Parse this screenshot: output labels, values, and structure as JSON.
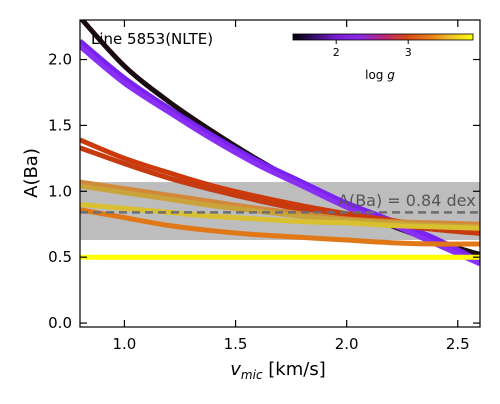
{
  "chart_data": {
    "type": "line",
    "title": "Line 5853(NLTE)",
    "xlabel_main": "v",
    "xlabel_sub": "mic",
    "xlabel_unit": " [km/s]",
    "ylabel": "A(Ba)",
    "xlim": [
      0.8,
      2.6
    ],
    "ylim": [
      -0.03,
      2.3
    ],
    "xticks": [
      "1.0",
      "1.5",
      "2.0",
      "2.5"
    ],
    "yticks": [
      "0.0",
      "0.5",
      "1.0",
      "1.5",
      "2.0"
    ],
    "mean_value": 0.84,
    "band": [
      0.63,
      1.07
    ],
    "mean_label": "A(Ba) = 0.84 dex",
    "colorbar": {
      "label_main": "log ",
      "label_var": "g",
      "ticks": [
        "2",
        "3"
      ],
      "tick_values": [
        2,
        3
      ],
      "range": [
        1.4,
        3.9
      ],
      "colormap": "plasma-like",
      "stops": [
        "#000004",
        "#3b0f70",
        "#7a1fd6",
        "#8b2be2",
        "#b5267a",
        "#d6451a",
        "#e8791a",
        "#f2c029",
        "#fcff0a"
      ]
    },
    "series": [
      {
        "color": "#1a0a12",
        "x": [
          0.8,
          1.0,
          1.2,
          1.4,
          1.6,
          1.8,
          2.0,
          2.2,
          2.4,
          2.6
        ],
        "y": [
          2.32,
          1.95,
          1.68,
          1.45,
          1.24,
          1.05,
          0.88,
          0.74,
          0.62,
          0.52
        ]
      },
      {
        "color": "#7a22f0",
        "x": [
          0.8,
          1.0,
          1.2,
          1.4,
          1.6,
          1.8,
          2.0,
          2.2,
          2.4,
          2.6
        ],
        "y": [
          2.14,
          1.86,
          1.63,
          1.42,
          1.23,
          1.07,
          0.91,
          0.78,
          0.64,
          0.47
        ]
      },
      {
        "color": "#8a30f4",
        "x": [
          0.8,
          1.0,
          1.2,
          1.4,
          1.6,
          1.8,
          2.0,
          2.2,
          2.4,
          2.6
        ],
        "y": [
          2.1,
          1.82,
          1.6,
          1.39,
          1.2,
          1.04,
          0.88,
          0.75,
          0.6,
          0.45
        ]
      },
      {
        "color": "#cc3a0c",
        "x": [
          0.8,
          1.0,
          1.2,
          1.4,
          1.6,
          1.8,
          2.0,
          2.2,
          2.4,
          2.6
        ],
        "y": [
          1.39,
          1.25,
          1.14,
          1.04,
          0.96,
          0.89,
          0.83,
          0.78,
          0.73,
          0.7
        ]
      },
      {
        "color": "#c63a10",
        "x": [
          0.8,
          1.0,
          1.2,
          1.4,
          1.6,
          1.8,
          2.0,
          2.2,
          2.4,
          2.6
        ],
        "y": [
          1.33,
          1.21,
          1.1,
          1.01,
          0.93,
          0.86,
          0.8,
          0.75,
          0.71,
          0.68
        ]
      },
      {
        "color": "#d28a3a",
        "x": [
          0.8,
          1.0,
          1.2,
          1.4,
          1.6,
          1.8,
          2.0,
          2.2,
          2.4,
          2.6
        ],
        "y": [
          1.07,
          1.02,
          0.97,
          0.92,
          0.87,
          0.83,
          0.79,
          0.77,
          0.76,
          0.75
        ]
      },
      {
        "color": "#c9a43a",
        "x": [
          0.8,
          1.0,
          1.2,
          1.4,
          1.6,
          1.8,
          2.0,
          2.2,
          2.4,
          2.6
        ],
        "y": [
          1.04,
          0.99,
          0.94,
          0.89,
          0.85,
          0.81,
          0.78,
          0.76,
          0.74,
          0.73
        ]
      },
      {
        "color": "#d9c030",
        "x": [
          0.8,
          1.0,
          1.2,
          1.4,
          1.6,
          1.8,
          2.0,
          2.2,
          2.4,
          2.6
        ],
        "y": [
          0.9,
          0.87,
          0.84,
          0.81,
          0.79,
          0.77,
          0.76,
          0.74,
          0.73,
          0.72
        ]
      },
      {
        "color": "#e07818",
        "x": [
          0.8,
          1.0,
          1.2,
          1.4,
          1.6,
          1.8,
          2.0,
          2.2,
          2.4,
          2.6
        ],
        "y": [
          0.86,
          0.8,
          0.74,
          0.7,
          0.67,
          0.65,
          0.63,
          0.61,
          0.6,
          0.6
        ]
      },
      {
        "color": "#ffff00",
        "x": [
          0.8,
          2.6
        ],
        "y": [
          0.5,
          0.5
        ]
      }
    ]
  }
}
